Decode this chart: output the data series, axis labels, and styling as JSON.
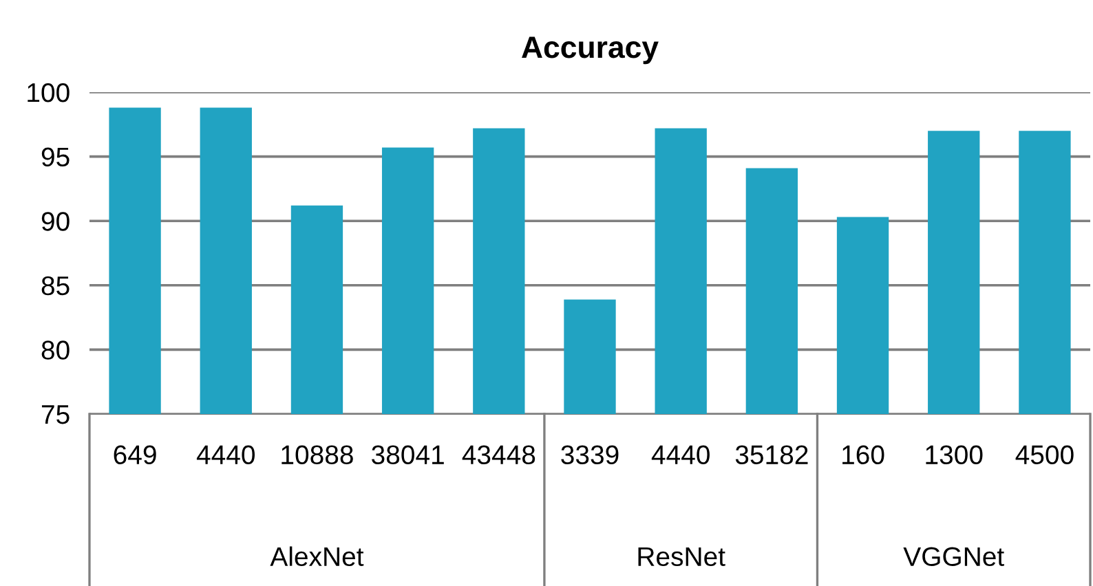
{
  "chart_data": {
    "type": "bar",
    "title": "Accuracy",
    "categories": [
      "649",
      "4440",
      "10888",
      "38041",
      "43448",
      "3339",
      "4440",
      "35182",
      "160",
      "1300",
      "4500"
    ],
    "values": [
      98.8,
      98.8,
      91.2,
      95.7,
      97.2,
      83.9,
      97.2,
      94.1,
      90.3,
      97.0,
      97.0
    ],
    "color": "#21a3c2",
    "ylim": [
      75,
      100
    ],
    "yticks": [
      75,
      80,
      85,
      90,
      95,
      100
    ],
    "grid": "y",
    "annotations": [
      "AlexNet",
      "ResNet",
      "VGGNet"
    ]
  }
}
